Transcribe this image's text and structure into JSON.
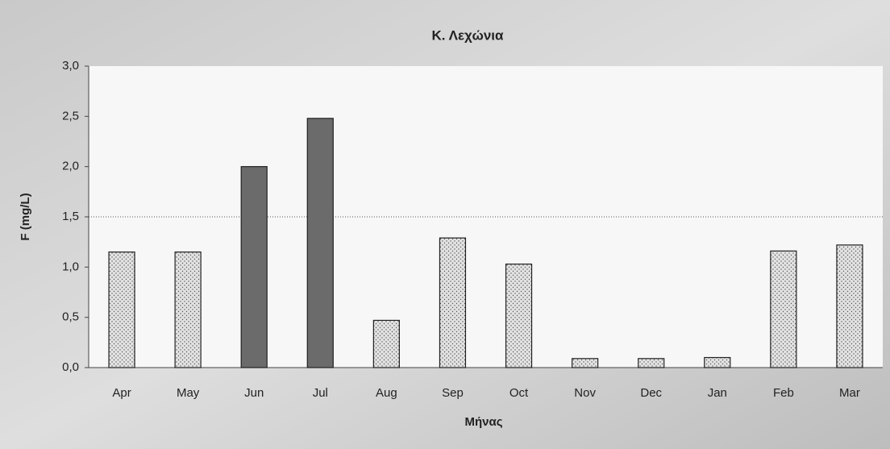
{
  "chart_data": {
    "type": "bar",
    "title": "Κ. Λεχώνια",
    "x_label": "Μήνας",
    "y_label": "F (mg/L)",
    "categories": [
      "Apr",
      "May",
      "Jun",
      "Jul",
      "Aug",
      "Sep",
      "Oct",
      "Nov",
      "Dec",
      "Jan",
      "Feb",
      "Mar"
    ],
    "values": [
      1.15,
      1.15,
      2.0,
      2.48,
      0.47,
      1.29,
      1.03,
      0.09,
      0.09,
      0.1,
      1.16,
      1.22
    ],
    "colors": [
      "#e2e2e2",
      "#e2e2e2",
      "#6b6b6b",
      "#6b6b6b",
      "#e2e2e2",
      "#e2e2e2",
      "#e2e2e2",
      "#e2e2e2",
      "#e2e2e2",
      "#e2e2e2",
      "#e2e2e2",
      "#e2e2e2"
    ],
    "patterns": [
      "dots",
      "dots",
      "solid",
      "solid",
      "dots",
      "dots",
      "dots",
      "dots",
      "dots",
      "dots",
      "dots",
      "dots"
    ],
    "ylim": [
      0,
      3
    ],
    "yticks": [
      {
        "value": 0,
        "label": "0,0"
      },
      {
        "value": 0.5,
        "label": "0,5"
      },
      {
        "value": 1,
        "label": "1,0"
      },
      {
        "value": 1.5,
        "label": "1,5"
      },
      {
        "value": 2,
        "label": "2,0"
      },
      {
        "value": 2.5,
        "label": "2,5"
      },
      {
        "value": 3,
        "label": "3,0"
      }
    ],
    "reference_line": 1.5,
    "grid": false
  }
}
